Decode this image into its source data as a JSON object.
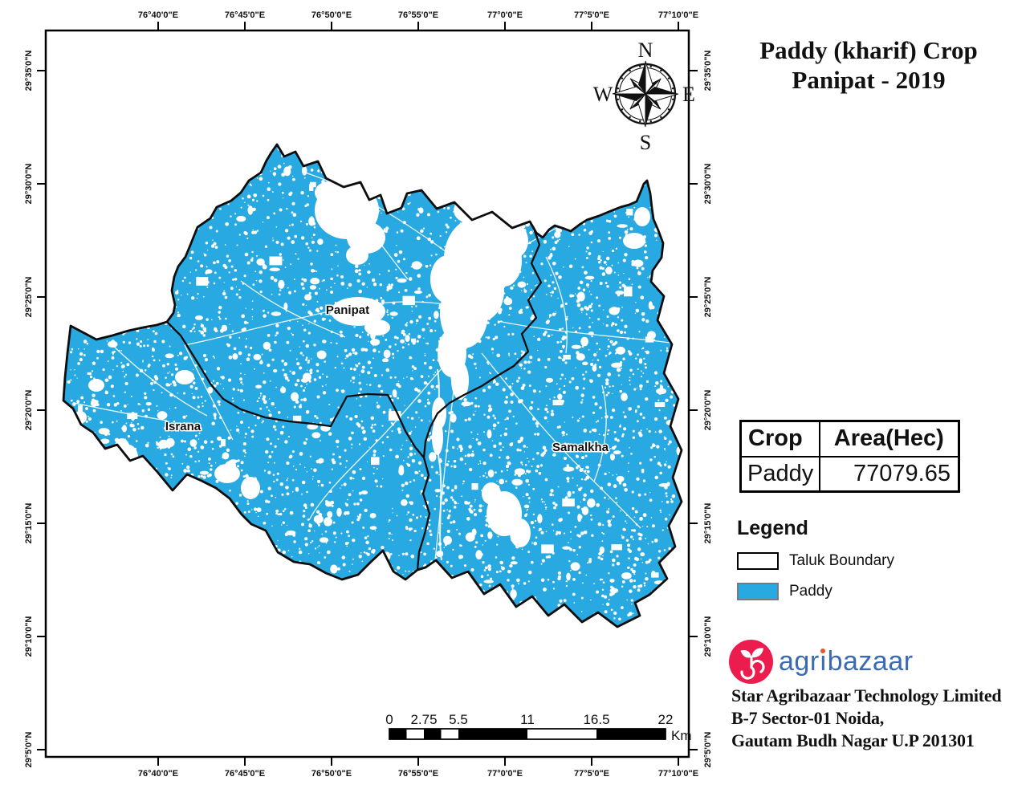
{
  "title": {
    "line1": "Paddy (kharif) Crop",
    "line2": "Panipat - 2019"
  },
  "map": {
    "lon_labels": [
      "76°40'0\"E",
      "76°45'0\"E",
      "76°50'0\"E",
      "76°55'0\"E",
      "77°0'0\"E",
      "77°5'0\"E",
      "77°10'0\"E"
    ],
    "lat_labels": [
      "29°35'0\"N",
      "29°30'0\"N",
      "29°25'0\"N",
      "29°20'0\"N",
      "29°15'0\"N",
      "29°10'0\"N",
      "29°5'0\"N"
    ],
    "region_labels": [
      "Panipat",
      "Israna",
      "Samalkha"
    ],
    "compass": {
      "n": "N",
      "e": "E",
      "s": "S",
      "w": "W"
    }
  },
  "table": {
    "headers": [
      "Crop",
      "Area(Hec)"
    ],
    "rows": [
      [
        "Paddy",
        "77079.65"
      ]
    ]
  },
  "legend": {
    "title": "Legend",
    "items": [
      {
        "label": "Taluk Boundary",
        "fill": "#ffffff",
        "border": "#000000"
      },
      {
        "label": "Paddy",
        "fill": "#29a9e1",
        "border": "#7a7a7a"
      }
    ]
  },
  "scalebar": {
    "tick_labels": [
      "0",
      "2.75",
      "5.5",
      "11",
      "16.5",
      "22"
    ],
    "unit": "Km"
  },
  "branding": {
    "logo_text": "agribazaar",
    "address_lines": [
      "Star Agribazaar Technology Limited",
      "B-7 Sector-01 Noida,",
      "Gautam Budh Nagar U.P 201301"
    ]
  },
  "icons": {
    "compass": "compass-rose-icon",
    "logo": "agribazaar-leaf-icon"
  },
  "colors": {
    "paddy": "#29a9e1",
    "boundary": "#0d0d0d",
    "frame": "#000000",
    "logo_pink": "#ec1c4f",
    "logo_blue": "#3a6ab3",
    "logo_dot": "#e8542a"
  }
}
